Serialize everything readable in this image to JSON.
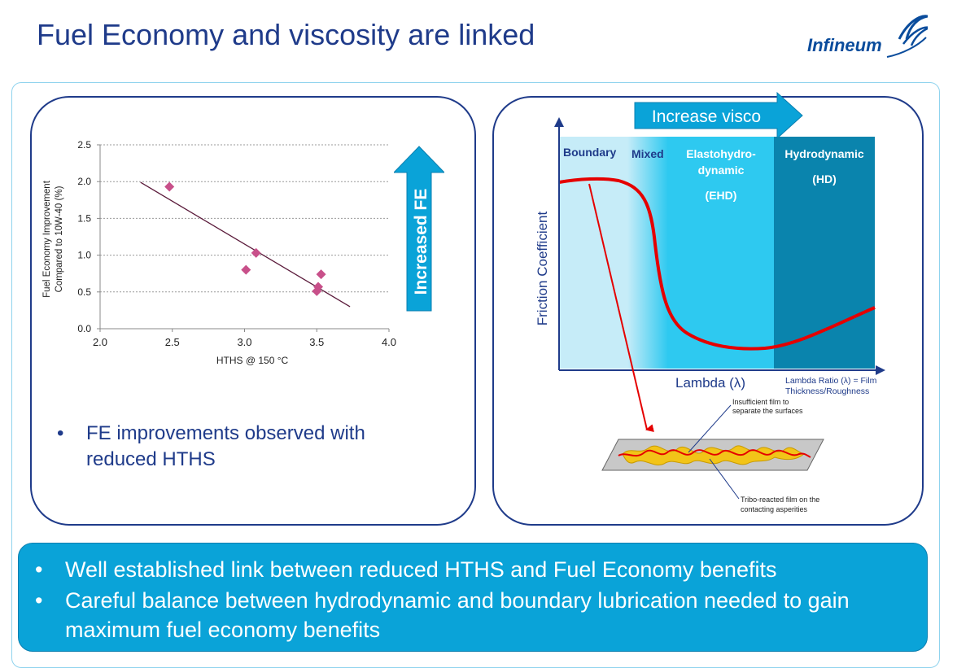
{
  "slide": {
    "title": "Fuel Economy and viscosity are linked",
    "logo_text": "Infineum"
  },
  "left_panel": {
    "bullet": "FE improvements observed with reduced HTHS",
    "arrow_label": "Increased FE"
  },
  "chart_data": {
    "type": "scatter",
    "xlabel": "HTHS @ 150 °C",
    "ylabel_line1": "Fuel Economy Improvement",
    "ylabel_line2": "Compared to 10W-40 (%)",
    "xlim": [
      2.0,
      4.0
    ],
    "ylim": [
      0.0,
      2.5
    ],
    "x_ticks": [
      "2.0",
      "2.5",
      "3.0",
      "3.5",
      "4.0"
    ],
    "y_ticks": [
      "0.0",
      "0.5",
      "1.0",
      "1.5",
      "2.0",
      "2.5"
    ],
    "grid": "horizontal dashed",
    "points": [
      {
        "x": 2.48,
        "y": 1.93
      },
      {
        "x": 3.08,
        "y": 1.03
      },
      {
        "x": 3.01,
        "y": 0.8
      },
      {
        "x": 3.53,
        "y": 0.74
      },
      {
        "x": 3.51,
        "y": 0.57
      },
      {
        "x": 3.5,
        "y": 0.51
      }
    ],
    "trendline": {
      "x": [
        2.28,
        3.73
      ],
      "y": [
        1.99,
        0.3
      ]
    },
    "colors": {
      "points": "#c8508a",
      "trendline": "#5a1a3a"
    }
  },
  "right_panel": {
    "increase_label": "Increase visco",
    "regions": {
      "boundary": "Boundary",
      "mixed": "Mixed",
      "ehd_line1": "Elastohydro-",
      "ehd_line2": "dynamic",
      "ehd_line3": "(EHD)",
      "hd_line1": "Hydrodynamic",
      "hd_line2": "(HD)"
    },
    "y_axis_label": "Friction Coefficient",
    "x_axis_label": "Lambda (λ)",
    "ratio_line1": "Lambda Ratio (λ) = Film",
    "ratio_line2": "Thickness/Roughness",
    "film_note_line1": "Insufficient film to",
    "film_note_line2": "separate the surfaces",
    "tribo_note_line1": "Tribo-reacted film on the",
    "tribo_note_line2": "contacting asperities",
    "colors": {
      "boundary": "#c6ecf8",
      "ehd": "#2ec9f0",
      "hd": "#0a84ad",
      "curve": "#e50000"
    }
  },
  "bottom": {
    "bullet1": "Well established link between reduced HTHS and Fuel Economy benefits",
    "bullet2": "Careful balance between hydrodynamic and boundary lubrication needed to gain maximum fuel economy benefits"
  }
}
